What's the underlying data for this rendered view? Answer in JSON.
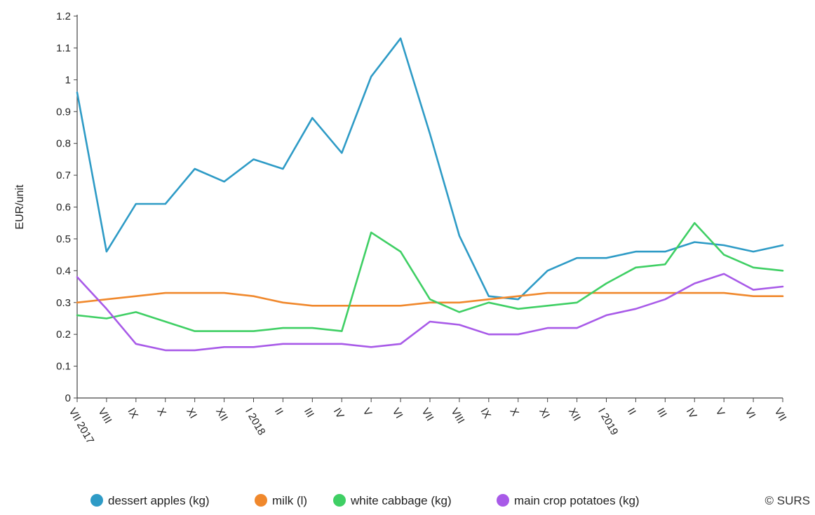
{
  "chart_data": {
    "type": "line",
    "ylabel": "EUR/unit",
    "ylim": [
      0,
      1.2
    ],
    "yticks": [
      "0",
      "0.1",
      "0.2",
      "0.3",
      "0.4",
      "0.5",
      "0.6",
      "0.7",
      "0.8",
      "0.9",
      "1",
      "1.1",
      "1.2"
    ],
    "categories": [
      "VII 2017",
      "VIII",
      "IX",
      "X",
      "XI",
      "XII",
      "I 2018",
      "II",
      "III",
      "IV",
      "V",
      "VI",
      "VII",
      "VIII",
      "IX",
      "X",
      "XI",
      "XII",
      "I 2019",
      "II",
      "III",
      "IV",
      "V",
      "VI",
      "VII"
    ],
    "grid": false,
    "legend_position": "bottom",
    "series": [
      {
        "name": "dessert apples (kg)",
        "color": "#2e9bc6",
        "values": [
          0.96,
          0.46,
          0.61,
          0.61,
          0.72,
          0.68,
          0.75,
          0.72,
          0.88,
          0.77,
          1.01,
          1.13,
          0.83,
          0.51,
          0.32,
          0.31,
          0.4,
          0.44,
          0.44,
          0.46,
          0.46,
          0.49,
          0.48,
          0.46,
          0.48
        ]
      },
      {
        "name": "milk (l)",
        "color": "#f0882c",
        "values": [
          0.3,
          0.31,
          0.32,
          0.33,
          0.33,
          0.33,
          0.32,
          0.3,
          0.29,
          0.29,
          0.29,
          0.29,
          0.3,
          0.3,
          0.31,
          0.32,
          0.33,
          0.33,
          0.33,
          0.33,
          0.33,
          0.33,
          0.33,
          0.32,
          0.32
        ]
      },
      {
        "name": "white cabbage (kg)",
        "color": "#3fcf64",
        "values": [
          0.26,
          0.25,
          0.27,
          0.24,
          0.21,
          0.21,
          0.21,
          0.22,
          0.22,
          0.21,
          0.52,
          0.46,
          0.31,
          0.27,
          0.3,
          0.28,
          0.29,
          0.3,
          0.36,
          0.41,
          0.42,
          0.55,
          0.45,
          0.41,
          0.4
        ]
      },
      {
        "name": "main crop potatoes (kg)",
        "color": "#a85ae8",
        "values": [
          0.38,
          0.28,
          0.17,
          0.15,
          0.15,
          0.16,
          0.16,
          0.17,
          0.17,
          0.17,
          0.16,
          0.17,
          0.24,
          0.23,
          0.2,
          0.2,
          0.22,
          0.22,
          0.26,
          0.28,
          0.31,
          0.36,
          0.39,
          0.34,
          0.35
        ]
      }
    ]
  },
  "credit": "© SURS"
}
